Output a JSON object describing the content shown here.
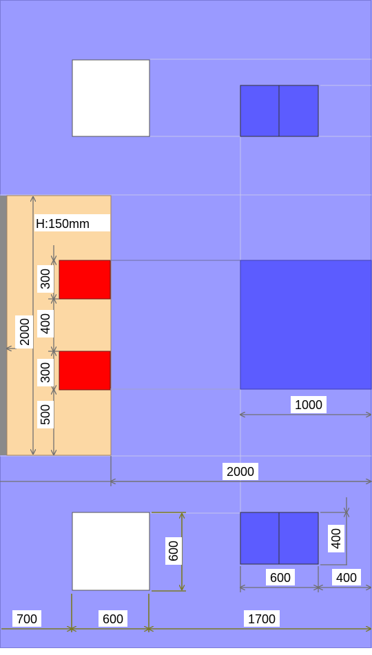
{
  "labels": {
    "height_note": "H:150mm",
    "table_depth": "2000",
    "red_top": "300",
    "red_gap": "400",
    "red_bottom": "300",
    "red_below": "500",
    "blue_block_width": "1000",
    "room_span": "2000",
    "white_height": "600",
    "seat_height": "400",
    "seat_width": "600",
    "seat_side": "400",
    "left_margin": "700",
    "white_width": "600",
    "right_span": "1700"
  },
  "colors": {
    "floor": "#9a9aff",
    "platform": "#fcd8a4",
    "red_block": "#ff0000",
    "blue_block": "#5c5cff",
    "white_block": "#ffffff",
    "wall": "#8a8a8a",
    "dim_gray": "#6e6e6e",
    "dim_olive": "#7a7a22"
  }
}
